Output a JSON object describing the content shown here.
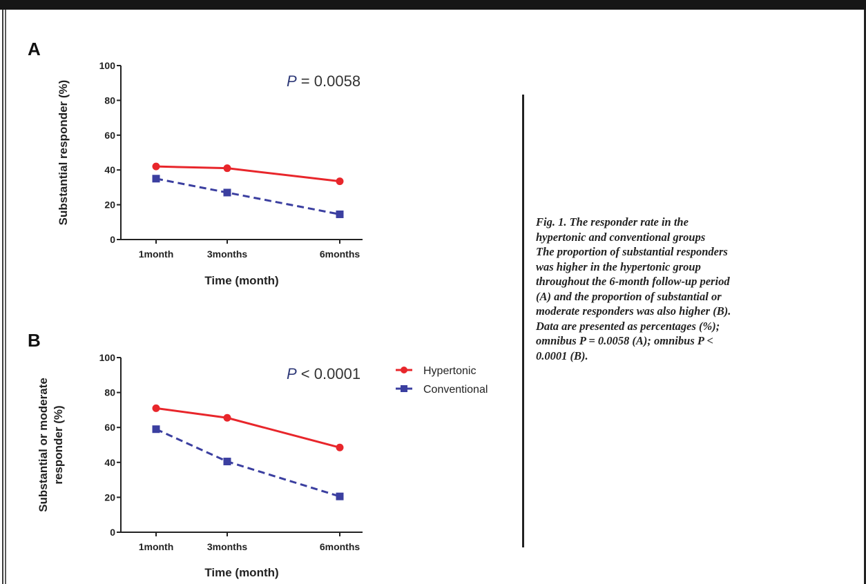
{
  "chart_data": [
    {
      "panel": "A",
      "type": "line",
      "categories": [
        "1month",
        "3months",
        "6months"
      ],
      "x": [
        1,
        3,
        6
      ],
      "series": [
        {
          "name": "Hypertonic",
          "values": [
            42,
            41,
            33.5
          ],
          "color": "#e8262b",
          "line": "solid",
          "marker": "circle"
        },
        {
          "name": "Conventional",
          "values": [
            35,
            27,
            14.5
          ],
          "color": "#3b3fa0",
          "line": "dashed",
          "marker": "square"
        }
      ],
      "annotation_prefix": "P",
      "annotation_rest": " = 0.0058",
      "xlabel": "Time (month)",
      "ylabel": [
        "Substantial responder (%)"
      ],
      "yticks": [
        "0",
        "20",
        "40",
        "60",
        "80",
        "100"
      ],
      "ylim": [
        0,
        100
      ],
      "legend": false
    },
    {
      "panel": "B",
      "type": "line",
      "categories": [
        "1month",
        "3months",
        "6months"
      ],
      "x": [
        1,
        3,
        6
      ],
      "series": [
        {
          "name": "Hypertonic",
          "values": [
            71,
            65.5,
            48.5
          ],
          "color": "#e8262b",
          "line": "solid",
          "marker": "circle"
        },
        {
          "name": "Conventional",
          "values": [
            59,
            40.5,
            20.5
          ],
          "color": "#3b3fa0",
          "line": "dashed",
          "marker": "square"
        }
      ],
      "annotation_prefix": "P",
      "annotation_rest": " < 0.0001",
      "xlabel": "Time (month)",
      "ylabel": [
        "Substantial or moderate",
        "responder (%)"
      ],
      "yticks": [
        "0",
        "20",
        "40",
        "60",
        "80",
        "100"
      ],
      "ylim": [
        0,
        100
      ],
      "legend": true,
      "legend_placement": "right"
    }
  ],
  "legend": {
    "hypertonic": "Hypertonic",
    "conventional": "Conventional"
  },
  "caption": {
    "lines": [
      "Fig. 1. The responder rate in the",
      "hypertonic and conventional groups",
      "The proportion of substantial responders",
      "was higher in the hypertonic group",
      "throughout the 6-month follow-up period",
      "(A) and the proportion of substantial or",
      "moderate responders was also higher (B).",
      "Data are presented as percentages (%);",
      "omnibus P = 0.0058 (A); omnibus P <",
      "0.0001 (B)."
    ]
  }
}
